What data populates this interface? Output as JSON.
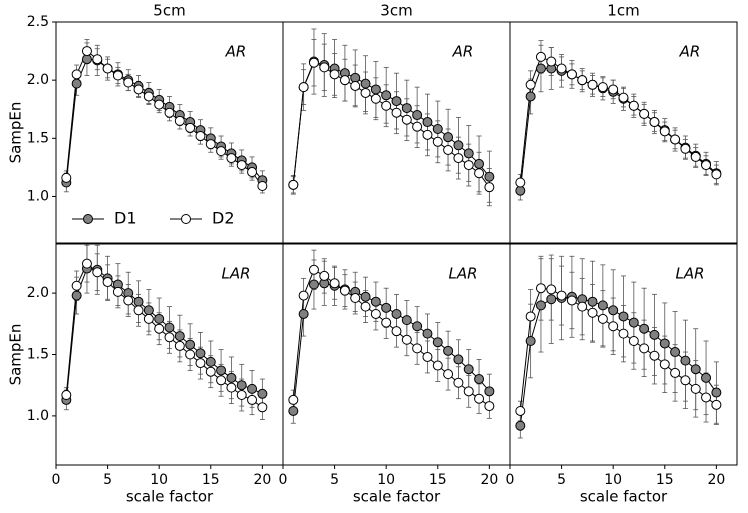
{
  "chart_data": [
    {
      "type": "line",
      "title": "5cm",
      "annotation": "AR",
      "ylabel": "SampEn",
      "legend": "lower left",
      "x": [
        1,
        2,
        3,
        4,
        5,
        6,
        7,
        8,
        9,
        10,
        11,
        12,
        13,
        14,
        15,
        16,
        17,
        18,
        19,
        20
      ],
      "xlim": [
        0,
        22
      ],
      "ylim": [
        0.6,
        2.5
      ],
      "yticks": [
        {
          "value": 1,
          "label": "1.0"
        },
        1.5,
        {
          "value": 2,
          "label": "2.0"
        },
        2.5
      ],
      "series": [
        {
          "name": "D1",
          "color": "#808080",
          "values": [
            1.12,
            1.97,
            2.18,
            2.17,
            2.1,
            2.05,
            2.0,
            1.95,
            1.89,
            1.83,
            1.77,
            1.7,
            1.64,
            1.57,
            1.5,
            1.43,
            1.37,
            1.31,
            1.25,
            1.14
          ],
          "errors": [
            0.08,
            0.1,
            0.14,
            0.13,
            0.1,
            0.1,
            0.09,
            0.09,
            0.09,
            0.09,
            0.09,
            0.09,
            0.09,
            0.09,
            0.09,
            0.09,
            0.09,
            0.09,
            0.09,
            0.08
          ]
        },
        {
          "name": "D2",
          "color": "#ffffff",
          "values": [
            1.16,
            2.05,
            2.25,
            2.18,
            2.1,
            2.04,
            1.98,
            1.92,
            1.86,
            1.79,
            1.72,
            1.65,
            1.59,
            1.52,
            1.45,
            1.39,
            1.33,
            1.27,
            1.21,
            1.09
          ],
          "errors": [
            0.06,
            0.08,
            0.1,
            0.09,
            0.08,
            0.07,
            0.07,
            0.07,
            0.07,
            0.07,
            0.07,
            0.07,
            0.07,
            0.07,
            0.07,
            0.07,
            0.07,
            0.07,
            0.07,
            0.06
          ]
        }
      ]
    },
    {
      "type": "line",
      "title": "3cm",
      "annotation": "AR",
      "x": [
        1,
        2,
        3,
        4,
        5,
        6,
        7,
        8,
        9,
        10,
        11,
        12,
        13,
        14,
        15,
        16,
        17,
        18,
        19,
        20
      ],
      "xlim": [
        0,
        22
      ],
      "ylim": [
        0.6,
        2.5
      ],
      "series": [
        {
          "color": "#808080",
          "values": [
            1.1,
            1.94,
            2.16,
            2.13,
            2.1,
            2.06,
            2.02,
            1.97,
            1.92,
            1.87,
            1.82,
            1.76,
            1.7,
            1.64,
            1.58,
            1.51,
            1.44,
            1.37,
            1.28,
            1.17
          ],
          "errors": [
            0.08,
            0.2,
            0.28,
            0.27,
            0.25,
            0.24,
            0.24,
            0.24,
            0.24,
            0.24,
            0.24,
            0.24,
            0.24,
            0.24,
            0.24,
            0.24,
            0.24,
            0.24,
            0.24,
            0.22
          ]
        },
        {
          "color": "#ffffff",
          "values": [
            1.1,
            1.94,
            2.15,
            2.11,
            2.05,
            2.0,
            1.95,
            1.89,
            1.84,
            1.78,
            1.72,
            1.66,
            1.6,
            1.53,
            1.47,
            1.4,
            1.33,
            1.27,
            1.2,
            1.08
          ],
          "errors": [
            0.07,
            0.15,
            0.2,
            0.2,
            0.18,
            0.18,
            0.18,
            0.18,
            0.18,
            0.18,
            0.18,
            0.18,
            0.18,
            0.18,
            0.18,
            0.18,
            0.18,
            0.18,
            0.18,
            0.16
          ]
        }
      ]
    },
    {
      "type": "line",
      "title": "1cm",
      "annotation": "AR",
      "x": [
        1,
        2,
        3,
        4,
        5,
        6,
        7,
        8,
        9,
        10,
        11,
        12,
        13,
        14,
        15,
        16,
        17,
        18,
        19,
        20
      ],
      "xlim": [
        0,
        22
      ],
      "ylim": [
        0.6,
        2.5
      ],
      "series": [
        {
          "color": "#808080",
          "values": [
            1.05,
            1.86,
            2.1,
            2.1,
            2.08,
            2.05,
            2.0,
            1.96,
            1.93,
            1.9,
            1.84,
            1.78,
            1.71,
            1.64,
            1.57,
            1.49,
            1.42,
            1.35,
            1.28,
            1.2
          ],
          "errors": [
            0.08,
            0.15,
            0.2,
            0.18,
            0.14,
            0.12,
            0.1,
            0.1,
            0.1,
            0.1,
            0.1,
            0.1,
            0.1,
            0.1,
            0.1,
            0.1,
            0.1,
            0.1,
            0.1,
            0.1
          ]
        },
        {
          "color": "#ffffff",
          "values": [
            1.12,
            1.96,
            2.2,
            2.16,
            2.1,
            2.05,
            2.0,
            1.96,
            1.94,
            1.92,
            1.85,
            1.78,
            1.71,
            1.64,
            1.56,
            1.49,
            1.41,
            1.34,
            1.27,
            1.19
          ],
          "errors": [
            0.07,
            0.12,
            0.14,
            0.12,
            0.1,
            0.09,
            0.08,
            0.08,
            0.08,
            0.08,
            0.08,
            0.08,
            0.08,
            0.08,
            0.08,
            0.08,
            0.08,
            0.08,
            0.08,
            0.08
          ]
        }
      ]
    },
    {
      "type": "line",
      "annotation": "LAR",
      "ylabel": "SampEn",
      "xlabel": "scale factor",
      "x": [
        1,
        2,
        3,
        4,
        5,
        6,
        7,
        8,
        9,
        10,
        11,
        12,
        13,
        14,
        15,
        16,
        17,
        18,
        19,
        20
      ],
      "xlim": [
        0,
        22
      ],
      "ylim": [
        0.6,
        2.4
      ],
      "xticks": [
        0,
        5,
        10,
        15,
        20
      ],
      "yticks": [
        {
          "value": 1,
          "label": "1.0"
        },
        1.5,
        {
          "value": 2,
          "label": "2.0"
        }
      ],
      "series": [
        {
          "color": "#808080",
          "values": [
            1.13,
            1.98,
            2.2,
            2.19,
            2.12,
            2.07,
            2.0,
            1.93,
            1.86,
            1.79,
            1.72,
            1.65,
            1.58,
            1.51,
            1.44,
            1.37,
            1.31,
            1.25,
            1.22,
            1.18
          ],
          "errors": [
            0.08,
            0.15,
            0.2,
            0.2,
            0.18,
            0.17,
            0.17,
            0.17,
            0.17,
            0.17,
            0.17,
            0.17,
            0.17,
            0.17,
            0.17,
            0.17,
            0.17,
            0.17,
            0.15,
            0.12
          ]
        },
        {
          "color": "#ffffff",
          "values": [
            1.17,
            2.06,
            2.24,
            2.17,
            2.09,
            2.01,
            1.94,
            1.86,
            1.79,
            1.71,
            1.64,
            1.57,
            1.5,
            1.43,
            1.36,
            1.29,
            1.23,
            1.17,
            1.13,
            1.07
          ],
          "errors": [
            0.06,
            0.12,
            0.15,
            0.15,
            0.14,
            0.13,
            0.13,
            0.13,
            0.13,
            0.13,
            0.13,
            0.13,
            0.13,
            0.13,
            0.13,
            0.13,
            0.13,
            0.13,
            0.12,
            0.1
          ]
        }
      ]
    },
    {
      "type": "line",
      "annotation": "LAR",
      "xlabel": "scale factor",
      "x": [
        1,
        2,
        3,
        4,
        5,
        6,
        7,
        8,
        9,
        10,
        11,
        12,
        13,
        14,
        15,
        16,
        17,
        18,
        19,
        20
      ],
      "xlim": [
        0,
        22
      ],
      "ylim": [
        0.6,
        2.4
      ],
      "xticks": [
        0,
        5,
        10,
        15,
        20
      ],
      "series": [
        {
          "color": "#808080",
          "values": [
            1.04,
            1.83,
            2.07,
            2.08,
            2.06,
            2.03,
            2.01,
            1.97,
            1.93,
            1.88,
            1.83,
            1.78,
            1.73,
            1.67,
            1.6,
            1.53,
            1.46,
            1.38,
            1.3,
            1.2
          ],
          "errors": [
            0.1,
            0.18,
            0.2,
            0.18,
            0.16,
            0.16,
            0.16,
            0.16,
            0.16,
            0.16,
            0.16,
            0.16,
            0.16,
            0.16,
            0.16,
            0.16,
            0.16,
            0.16,
            0.16,
            0.14
          ]
        },
        {
          "color": "#ffffff",
          "values": [
            1.13,
            1.98,
            2.19,
            2.14,
            2.08,
            2.02,
            1.96,
            1.89,
            1.83,
            1.76,
            1.69,
            1.62,
            1.55,
            1.48,
            1.41,
            1.34,
            1.27,
            1.2,
            1.14,
            1.08
          ],
          "errors": [
            0.08,
            0.14,
            0.16,
            0.14,
            0.13,
            0.13,
            0.13,
            0.13,
            0.13,
            0.13,
            0.13,
            0.13,
            0.13,
            0.13,
            0.13,
            0.13,
            0.13,
            0.13,
            0.12,
            0.1
          ]
        }
      ]
    },
    {
      "type": "line",
      "annotation": "LAR",
      "xlabel": "scale factor",
      "x": [
        1,
        2,
        3,
        4,
        5,
        6,
        7,
        8,
        9,
        10,
        11,
        12,
        13,
        14,
        15,
        16,
        17,
        18,
        19,
        20
      ],
      "xlim": [
        0,
        22
      ],
      "ylim": [
        0.6,
        2.4
      ],
      "xticks": [
        0,
        5,
        10,
        15,
        20
      ],
      "series": [
        {
          "color": "#808080",
          "values": [
            0.92,
            1.61,
            1.9,
            1.95,
            1.96,
            1.97,
            1.95,
            1.93,
            1.9,
            1.86,
            1.81,
            1.76,
            1.71,
            1.66,
            1.59,
            1.52,
            1.45,
            1.38,
            1.31,
            1.19
          ],
          "errors": [
            0.1,
            0.3,
            0.38,
            0.36,
            0.34,
            0.33,
            0.33,
            0.33,
            0.33,
            0.33,
            0.33,
            0.33,
            0.33,
            0.33,
            0.33,
            0.33,
            0.33,
            0.33,
            0.3,
            0.25
          ]
        },
        {
          "color": "#ffffff",
          "values": [
            1.04,
            1.81,
            2.04,
            2.03,
            1.98,
            1.94,
            1.89,
            1.84,
            1.79,
            1.73,
            1.67,
            1.61,
            1.55,
            1.49,
            1.42,
            1.35,
            1.29,
            1.22,
            1.15,
            1.09
          ],
          "errors": [
            0.08,
            0.22,
            0.26,
            0.25,
            0.24,
            0.23,
            0.23,
            0.23,
            0.23,
            0.23,
            0.23,
            0.23,
            0.23,
            0.23,
            0.23,
            0.23,
            0.23,
            0.23,
            0.2,
            0.16
          ]
        }
      ]
    }
  ]
}
